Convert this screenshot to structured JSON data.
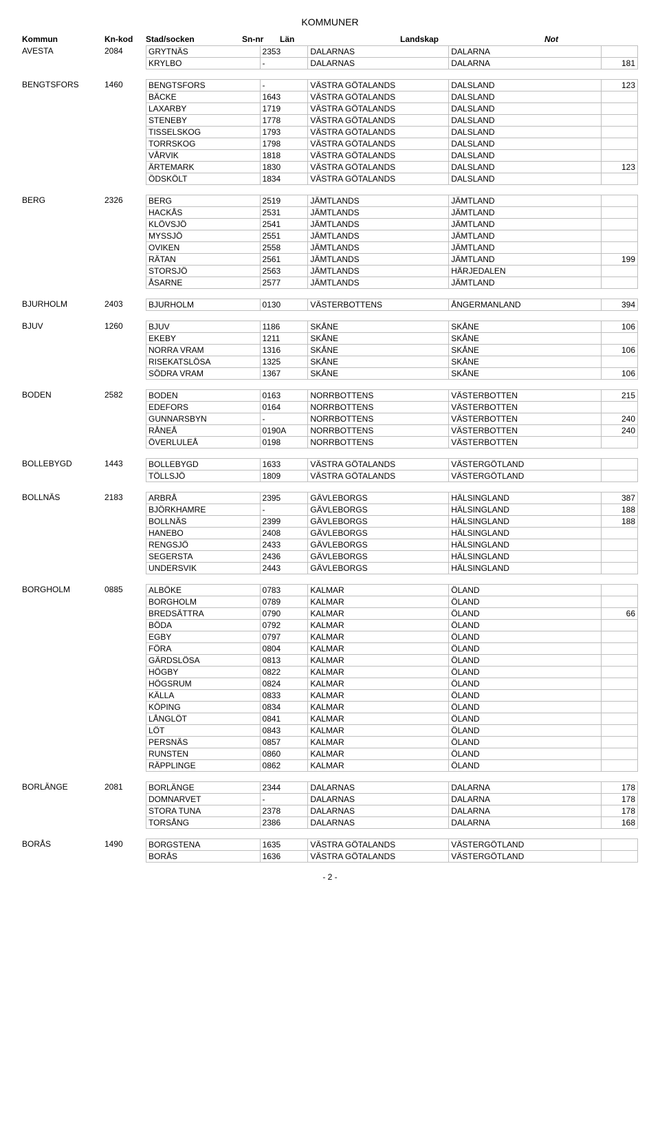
{
  "title": "KOMMUNER",
  "page_number": "- 2 -",
  "columns": {
    "kommun": "Kommun",
    "kn_kod": "Kn-kod",
    "stad": "Stad/socken",
    "sn_nr": "Sn-nr",
    "lan": "Län",
    "landskap": "Landskap",
    "not": "Not"
  },
  "groups": [
    {
      "kommun": "AVESTA",
      "kn_kod": "2084",
      "rows": [
        {
          "stad": "GRYTNÄS",
          "sn": "2353",
          "lan": "DALARNAS",
          "land": "DALARNA",
          "not": ""
        },
        {
          "stad": "KRYLBO",
          "sn": "-",
          "lan": "DALARNAS",
          "land": "DALARNA",
          "not": "181"
        }
      ]
    },
    {
      "kommun": "BENGTSFORS",
      "kn_kod": "1460",
      "rows": [
        {
          "stad": "BENGTSFORS",
          "sn": "-",
          "lan": "VÄSTRA GÖTALANDS",
          "land": "DALSLAND",
          "not": "123"
        },
        {
          "stad": "BÄCKE",
          "sn": "1643",
          "lan": "VÄSTRA GÖTALANDS",
          "land": "DALSLAND",
          "not": ""
        },
        {
          "stad": "LAXARBY",
          "sn": "1719",
          "lan": "VÄSTRA GÖTALANDS",
          "land": "DALSLAND",
          "not": ""
        },
        {
          "stad": "STENEBY",
          "sn": "1778",
          "lan": "VÄSTRA GÖTALANDS",
          "land": "DALSLAND",
          "not": ""
        },
        {
          "stad": "TISSELSKOG",
          "sn": "1793",
          "lan": "VÄSTRA GÖTALANDS",
          "land": "DALSLAND",
          "not": ""
        },
        {
          "stad": "TORRSKOG",
          "sn": "1798",
          "lan": "VÄSTRA GÖTALANDS",
          "land": "DALSLAND",
          "not": ""
        },
        {
          "stad": "VÅRVIK",
          "sn": "1818",
          "lan": "VÄSTRA GÖTALANDS",
          "land": "DALSLAND",
          "not": ""
        },
        {
          "stad": "ÄRTEMARK",
          "sn": "1830",
          "lan": "VÄSTRA GÖTALANDS",
          "land": "DALSLAND",
          "not": "123"
        },
        {
          "stad": "ÖDSKÖLT",
          "sn": "1834",
          "lan": "VÄSTRA GÖTALANDS",
          "land": "DALSLAND",
          "not": ""
        }
      ]
    },
    {
      "kommun": "BERG",
      "kn_kod": "2326",
      "rows": [
        {
          "stad": "BERG",
          "sn": "2519",
          "lan": "JÄMTLANDS",
          "land": "JÄMTLAND",
          "not": ""
        },
        {
          "stad": "HACKÅS",
          "sn": "2531",
          "lan": "JÄMTLANDS",
          "land": "JÄMTLAND",
          "not": ""
        },
        {
          "stad": "KLÖVSJÖ",
          "sn": "2541",
          "lan": "JÄMTLANDS",
          "land": "JÄMTLAND",
          "not": ""
        },
        {
          "stad": "MYSSJÖ",
          "sn": "2551",
          "lan": "JÄMTLANDS",
          "land": "JÄMTLAND",
          "not": ""
        },
        {
          "stad": "OVIKEN",
          "sn": "2558",
          "lan": "JÄMTLANDS",
          "land": "JÄMTLAND",
          "not": ""
        },
        {
          "stad": "RÄTAN",
          "sn": "2561",
          "lan": "JÄMTLANDS",
          "land": "JÄMTLAND",
          "not": "199"
        },
        {
          "stad": "STORSJÖ",
          "sn": "2563",
          "lan": "JÄMTLANDS",
          "land": "HÄRJEDALEN",
          "not": ""
        },
        {
          "stad": "ÅSARNE",
          "sn": "2577",
          "lan": "JÄMTLANDS",
          "land": "JÄMTLAND",
          "not": ""
        }
      ]
    },
    {
      "kommun": "BJURHOLM",
      "kn_kod": "2403",
      "rows": [
        {
          "stad": "BJURHOLM",
          "sn": "0130",
          "lan": "VÄSTERBOTTENS",
          "land": "ÅNGERMANLAND",
          "not": "394"
        }
      ]
    },
    {
      "kommun": "BJUV",
      "kn_kod": "1260",
      "rows": [
        {
          "stad": "BJUV",
          "sn": "1186",
          "lan": "SKÅNE",
          "land": "SKÅNE",
          "not": "106"
        },
        {
          "stad": "EKEBY",
          "sn": "1211",
          "lan": "SKÅNE",
          "land": "SKÅNE",
          "not": ""
        },
        {
          "stad": "NORRA VRAM",
          "sn": "1316",
          "lan": "SKÅNE",
          "land": "SKÅNE",
          "not": "106"
        },
        {
          "stad": "RISEKATSLÖSA",
          "sn": "1325",
          "lan": "SKÅNE",
          "land": "SKÅNE",
          "not": ""
        },
        {
          "stad": "SÖDRA VRAM",
          "sn": "1367",
          "lan": "SKÅNE",
          "land": "SKÅNE",
          "not": "106"
        }
      ]
    },
    {
      "kommun": "BODEN",
      "kn_kod": "2582",
      "rows": [
        {
          "stad": "BODEN",
          "sn": "0163",
          "lan": "NORRBOTTENS",
          "land": "VÄSTERBOTTEN",
          "not": "215"
        },
        {
          "stad": "EDEFORS",
          "sn": "0164",
          "lan": "NORRBOTTENS",
          "land": "VÄSTERBOTTEN",
          "not": ""
        },
        {
          "stad": "GUNNARSBYN",
          "sn": "-",
          "lan": "NORRBOTTENS",
          "land": "VÄSTERBOTTEN",
          "not": "240"
        },
        {
          "stad": "RÅNEÅ",
          "sn": "0190A",
          "lan": "NORRBOTTENS",
          "land": "VÄSTERBOTTEN",
          "not": "240"
        },
        {
          "stad": "ÖVERLULEÅ",
          "sn": "0198",
          "lan": "NORRBOTTENS",
          "land": "VÄSTERBOTTEN",
          "not": ""
        }
      ]
    },
    {
      "kommun": "BOLLEBYGD",
      "kn_kod": "1443",
      "rows": [
        {
          "stad": "BOLLEBYGD",
          "sn": "1633",
          "lan": "VÄSTRA GÖTALANDS",
          "land": "VÄSTERGÖTLAND",
          "not": ""
        },
        {
          "stad": "TÖLLSJÖ",
          "sn": "1809",
          "lan": "VÄSTRA GÖTALANDS",
          "land": "VÄSTERGÖTLAND",
          "not": ""
        }
      ]
    },
    {
      "kommun": "BOLLNÄS",
      "kn_kod": "2183",
      "rows": [
        {
          "stad": "ARBRÅ",
          "sn": "2395",
          "lan": "GÄVLEBORGS",
          "land": "HÄLSINGLAND",
          "not": "387"
        },
        {
          "stad": "BJÖRKHAMRE",
          "sn": "-",
          "lan": "GÄVLEBORGS",
          "land": "HÄLSINGLAND",
          "not": "188"
        },
        {
          "stad": "BOLLNÄS",
          "sn": "2399",
          "lan": "GÄVLEBORGS",
          "land": "HÄLSINGLAND",
          "not": "188"
        },
        {
          "stad": "HANEBO",
          "sn": "2408",
          "lan": "GÄVLEBORGS",
          "land": "HÄLSINGLAND",
          "not": ""
        },
        {
          "stad": "RENGSJÖ",
          "sn": "2433",
          "lan": "GÄVLEBORGS",
          "land": "HÄLSINGLAND",
          "not": ""
        },
        {
          "stad": "SEGERSTA",
          "sn": "2436",
          "lan": "GÄVLEBORGS",
          "land": "HÄLSINGLAND",
          "not": ""
        },
        {
          "stad": "UNDERSVIK",
          "sn": "2443",
          "lan": "GÄVLEBORGS",
          "land": "HÄLSINGLAND",
          "not": ""
        }
      ]
    },
    {
      "kommun": "BORGHOLM",
      "kn_kod": "0885",
      "rows": [
        {
          "stad": "ALBÖKE",
          "sn": "0783",
          "lan": "KALMAR",
          "land": "ÖLAND",
          "not": ""
        },
        {
          "stad": "BORGHOLM",
          "sn": "0789",
          "lan": "KALMAR",
          "land": "ÖLAND",
          "not": ""
        },
        {
          "stad": "BREDSÄTTRA",
          "sn": "0790",
          "lan": "KALMAR",
          "land": "ÖLAND",
          "not": "66"
        },
        {
          "stad": "BÖDA",
          "sn": "0792",
          "lan": "KALMAR",
          "land": "ÖLAND",
          "not": ""
        },
        {
          "stad": "EGBY",
          "sn": "0797",
          "lan": "KALMAR",
          "land": "ÖLAND",
          "not": ""
        },
        {
          "stad": "FÖRA",
          "sn": "0804",
          "lan": "KALMAR",
          "land": "ÖLAND",
          "not": ""
        },
        {
          "stad": "GÄRDSLÖSA",
          "sn": "0813",
          "lan": "KALMAR",
          "land": "ÖLAND",
          "not": ""
        },
        {
          "stad": "HÖGBY",
          "sn": "0822",
          "lan": "KALMAR",
          "land": "ÖLAND",
          "not": ""
        },
        {
          "stad": "HÖGSRUM",
          "sn": "0824",
          "lan": "KALMAR",
          "land": "ÖLAND",
          "not": ""
        },
        {
          "stad": "KÄLLA",
          "sn": "0833",
          "lan": "KALMAR",
          "land": "ÖLAND",
          "not": ""
        },
        {
          "stad": "KÖPING",
          "sn": "0834",
          "lan": "KALMAR",
          "land": "ÖLAND",
          "not": ""
        },
        {
          "stad": "LÅNGLÖT",
          "sn": "0841",
          "lan": "KALMAR",
          "land": "ÖLAND",
          "not": ""
        },
        {
          "stad": "LÖT",
          "sn": "0843",
          "lan": "KALMAR",
          "land": "ÖLAND",
          "not": ""
        },
        {
          "stad": "PERSNÄS",
          "sn": "0857",
          "lan": "KALMAR",
          "land": "ÖLAND",
          "not": ""
        },
        {
          "stad": "RUNSTEN",
          "sn": "0860",
          "lan": "KALMAR",
          "land": "ÖLAND",
          "not": ""
        },
        {
          "stad": "RÄPPLINGE",
          "sn": "0862",
          "lan": "KALMAR",
          "land": "ÖLAND",
          "not": ""
        }
      ]
    },
    {
      "kommun": "BORLÄNGE",
      "kn_kod": "2081",
      "rows": [
        {
          "stad": "BORLÄNGE",
          "sn": "2344",
          "lan": "DALARNAS",
          "land": "DALARNA",
          "not": "178"
        },
        {
          "stad": "DOMNARVET",
          "sn": "-",
          "lan": "DALARNAS",
          "land": "DALARNA",
          "not": "178"
        },
        {
          "stad": "STORA TUNA",
          "sn": "2378",
          "lan": "DALARNAS",
          "land": "DALARNA",
          "not": "178"
        },
        {
          "stad": "TORSÅNG",
          "sn": "2386",
          "lan": "DALARNAS",
          "land": "DALARNA",
          "not": "168"
        }
      ]
    },
    {
      "kommun": "BORÅS",
      "kn_kod": "1490",
      "rows": [
        {
          "stad": "BORGSTENA",
          "sn": "1635",
          "lan": "VÄSTRA GÖTALANDS",
          "land": "VÄSTERGÖTLAND",
          "not": ""
        },
        {
          "stad": "BORÅS",
          "sn": "1636",
          "lan": "VÄSTRA GÖTALANDS",
          "land": "VÄSTERGÖTLAND",
          "not": ""
        }
      ]
    }
  ]
}
